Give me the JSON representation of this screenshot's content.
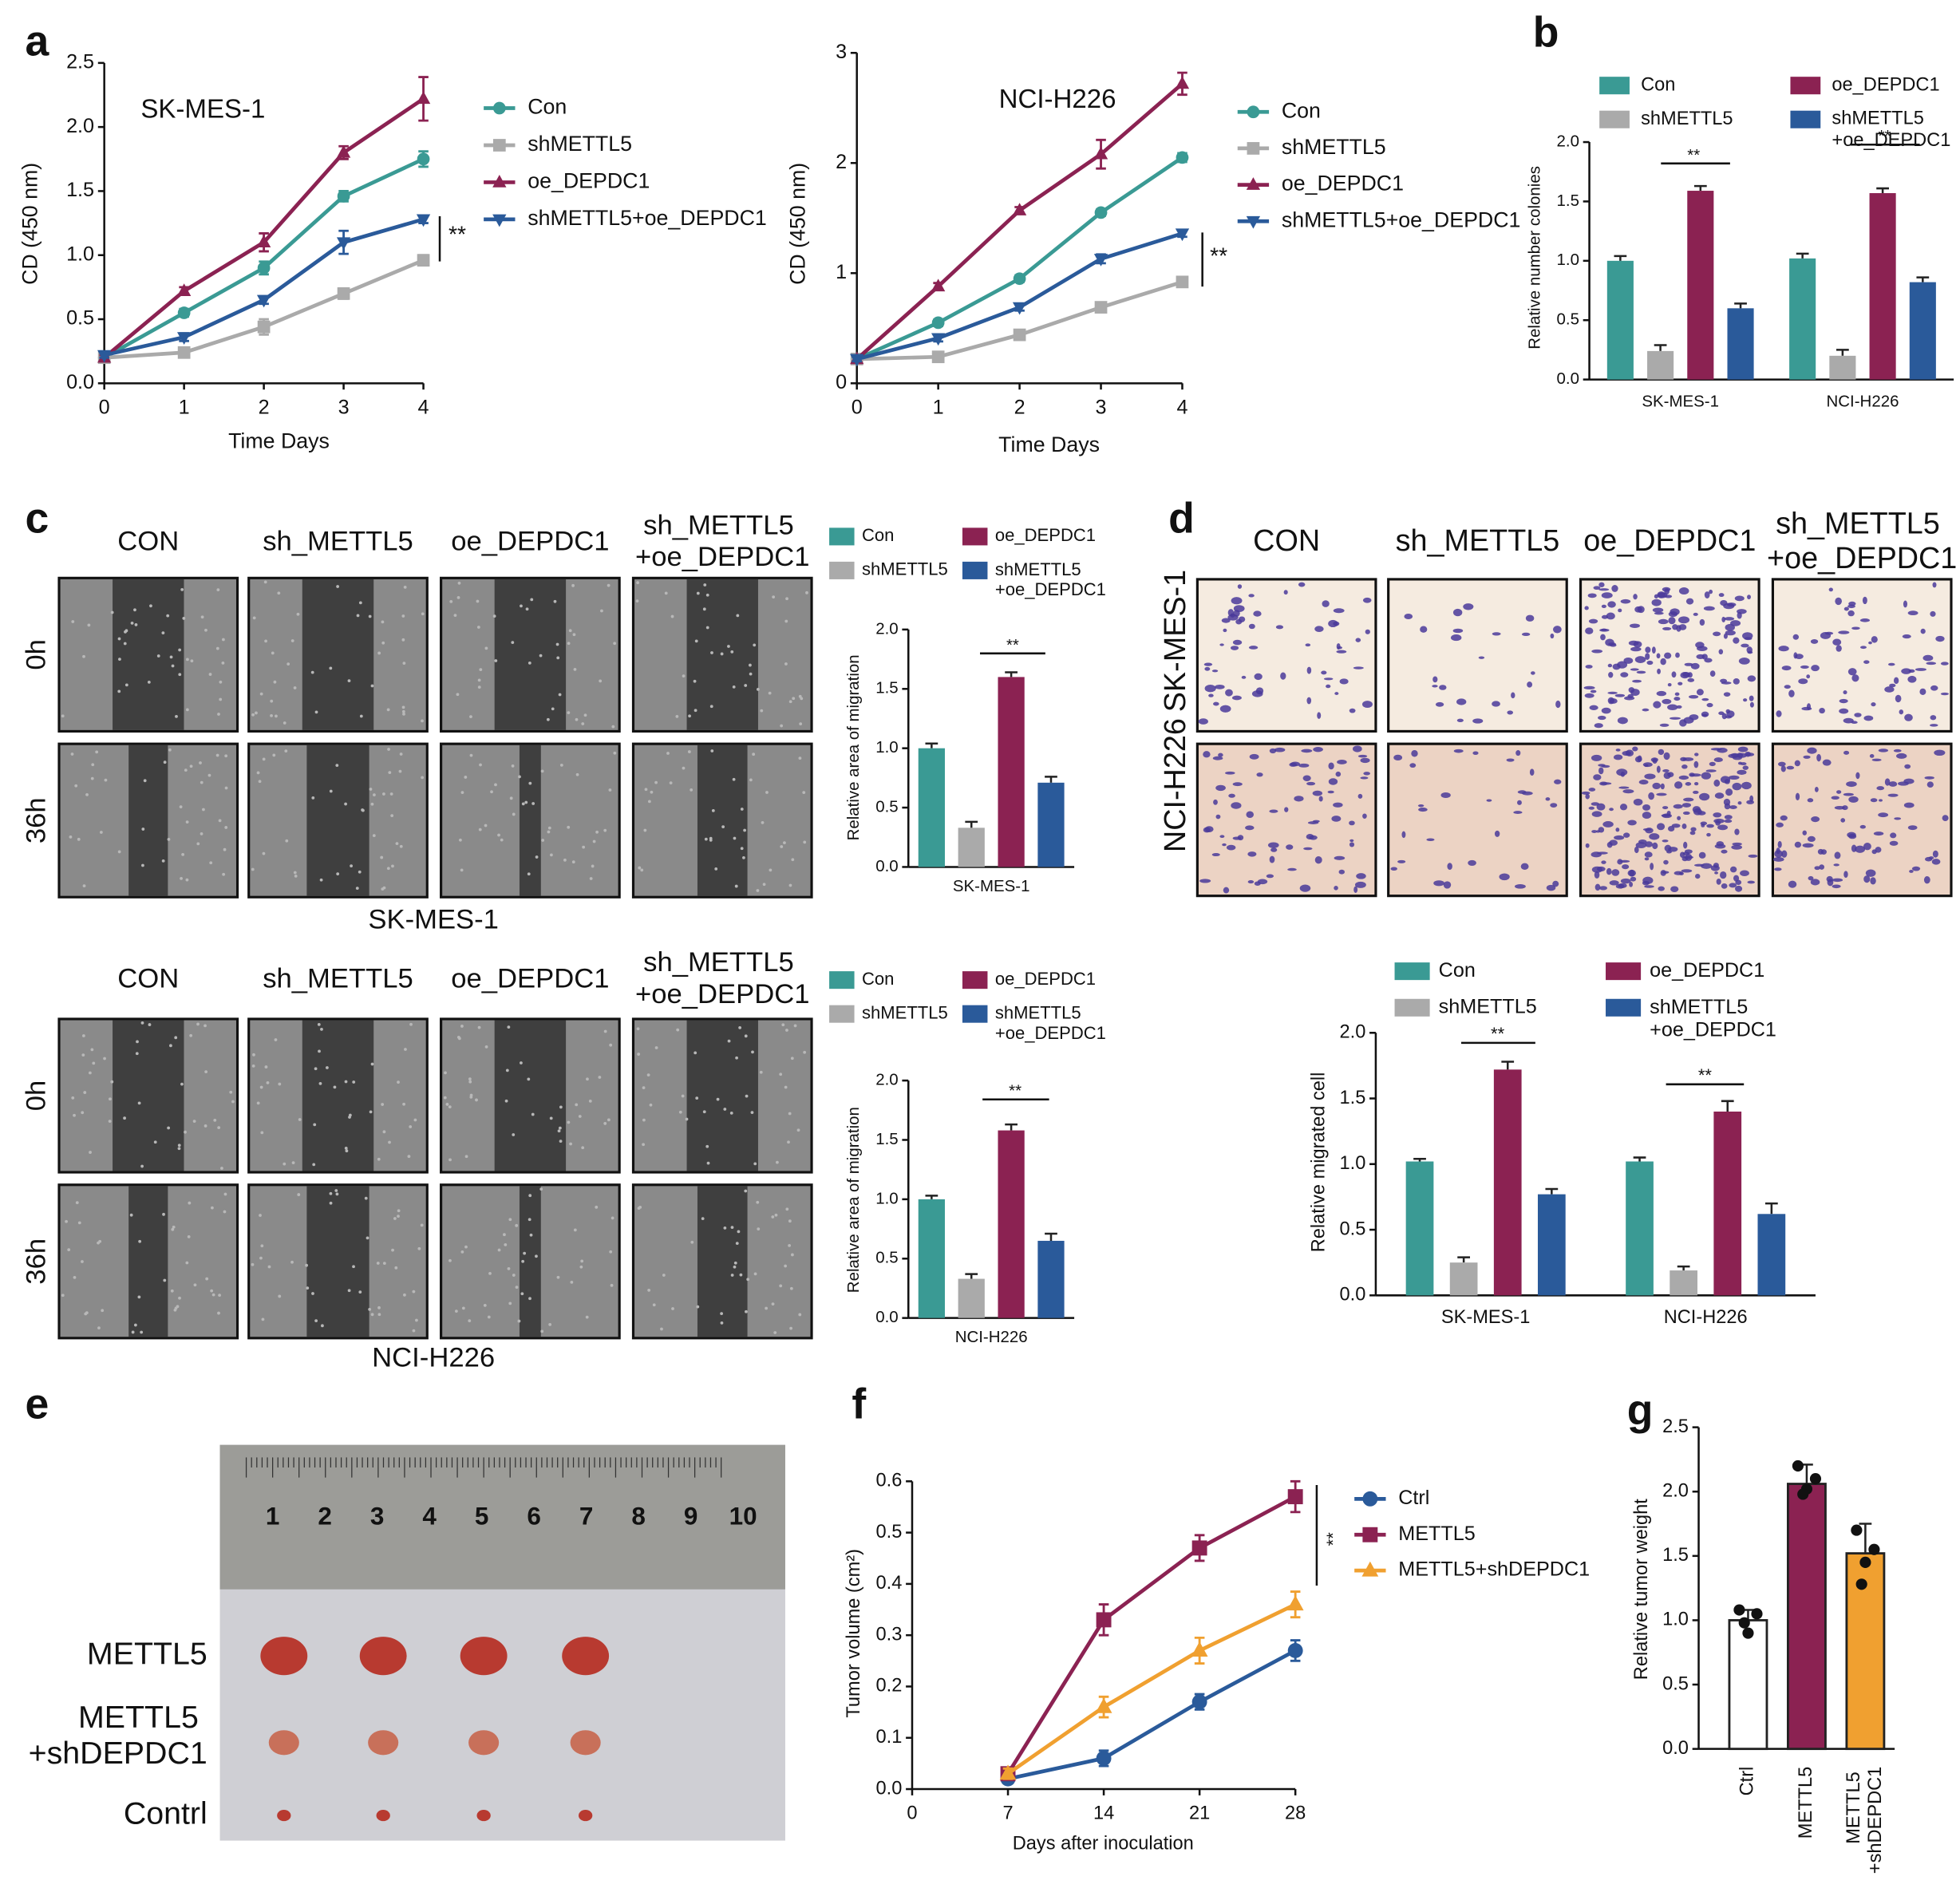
{
  "panel_labels": [
    "a",
    "b",
    "c",
    "d",
    "e",
    "f",
    "g"
  ],
  "wound_healing": [
    {
      "columns": [
        "CON",
        "sh_METTL5",
        "oe_DEPDC1",
        "sh_METTL5\n+oe_DEPDC1"
      ],
      "rows": [
        "0h",
        "36h"
      ],
      "cell_line": "SK-MES-1"
    },
    {
      "columns": [
        "CON",
        "sh_METTL5",
        "oe_DEPDC1",
        "sh_METTL5\n+oe_DEPDC1"
      ],
      "rows": [
        "0h",
        "36h"
      ],
      "cell_line": "NCI-H226"
    }
  ],
  "transwell": {
    "columns": [
      "CON",
      "sh_METTL5",
      "oe_DEPDC1",
      "sh_METTL5\n+oe_DEPDC1"
    ],
    "rows": [
      "SK-MES-1",
      "NCI-H226"
    ]
  },
  "tumor_photo": {
    "ruler_numbers": [
      1,
      2,
      3,
      4,
      5,
      6,
      7,
      8,
      9,
      10
    ],
    "rows": [
      "METTL5",
      "METTL5\n+shDEPDC1",
      "Contrl"
    ]
  },
  "chart_data": [
    {
      "type": "line",
      "title": "SK-MES-1",
      "xlabel": "Time Days",
      "ylabel": "CD (450 nm)",
      "x": [
        0,
        1,
        2,
        3,
        4
      ],
      "xlim": [
        0,
        4
      ],
      "xticks": [
        0,
        1,
        2,
        3,
        4
      ],
      "ylim": [
        0,
        2.5
      ],
      "yticks": [
        {
          "value": 0,
          "label": "0.0"
        },
        0.5,
        {
          "value": 1,
          "label": "1.0"
        },
        1.5,
        {
          "value": 2,
          "label": "2.0"
        },
        2.5
      ],
      "series": [
        {
          "name": "Con",
          "color": "#3a9a94",
          "marker": "circle",
          "values": [
            0.2,
            0.55,
            0.9,
            1.46,
            1.75
          ],
          "errors": [
            0.02,
            0.03,
            0.05,
            0.04,
            0.06
          ]
        },
        {
          "name": "shMETTL5",
          "color": "#aaaaaa",
          "marker": "square",
          "values": [
            0.2,
            0.24,
            0.44,
            0.7,
            0.96
          ],
          "errors": [
            0.02,
            0.03,
            0.06,
            0.04,
            0.04
          ]
        },
        {
          "name": "oe_DEPDC1",
          "color": "#8b2252",
          "marker": "triangle-up",
          "values": [
            0.2,
            0.72,
            1.1,
            1.8,
            2.22
          ],
          "errors": [
            0.02,
            0.03,
            0.07,
            0.05,
            0.17
          ]
        },
        {
          "name": "shMETTL5+oe_DEPDC1",
          "color": "#2a5a9a",
          "marker": "triangle-down",
          "values": [
            0.22,
            0.36,
            0.65,
            1.1,
            1.28
          ],
          "errors": [
            0.02,
            0.03,
            0.03,
            0.09,
            0.03
          ]
        }
      ],
      "annotations": [
        "**"
      ]
    },
    {
      "type": "line",
      "title": "NCI-H226",
      "xlabel": "Time Days",
      "ylabel": "CD (450 nm)",
      "x": [
        0,
        1,
        2,
        3,
        4
      ],
      "xlim": [
        0,
        4
      ],
      "xticks": [
        0,
        1,
        2,
        3,
        4
      ],
      "ylim": [
        0,
        3
      ],
      "yticks": [
        0,
        1,
        2,
        3
      ],
      "series": [
        {
          "name": "Con",
          "color": "#3a9a94",
          "marker": "circle",
          "values": [
            0.22,
            0.55,
            0.95,
            1.55,
            2.05
          ],
          "errors": [
            0.02,
            0.03,
            0.03,
            0.03,
            0.04
          ]
        },
        {
          "name": "shMETTL5",
          "color": "#aaaaaa",
          "marker": "square",
          "values": [
            0.22,
            0.24,
            0.44,
            0.69,
            0.92
          ],
          "errors": [
            0.02,
            0.03,
            0.03,
            0.03,
            0.03
          ]
        },
        {
          "name": "oe_DEPDC1",
          "color": "#8b2252",
          "marker": "triangle-up",
          "values": [
            0.22,
            0.88,
            1.57,
            2.08,
            2.72
          ],
          "errors": [
            0.02,
            0.03,
            0.03,
            0.13,
            0.1
          ]
        },
        {
          "name": "shMETTL5+oe_DEPDC1",
          "color": "#2a5a9a",
          "marker": "triangle-down",
          "values": [
            0.22,
            0.41,
            0.69,
            1.13,
            1.36
          ],
          "errors": [
            0.02,
            0.03,
            0.03,
            0.04,
            0.03
          ]
        }
      ],
      "annotations": [
        "**"
      ]
    },
    {
      "type": "bar",
      "ylabel": "Relative number colonies",
      "categories": [
        "SK-MES-1",
        "NCI-H226"
      ],
      "ylim": [
        0,
        2
      ],
      "yticks": [
        {
          "value": 0,
          "label": "0.0"
        },
        0.5,
        {
          "value": 1,
          "label": "1.0"
        },
        1.5,
        {
          "value": 2,
          "label": "2.0"
        }
      ],
      "series": [
        {
          "name": "Con",
          "color": "#3a9a94",
          "values": [
            1.0,
            1.02
          ],
          "errors": [
            0.04,
            0.04
          ]
        },
        {
          "name": "shMETTL5",
          "color": "#aaaaaa",
          "values": [
            0.24,
            0.2
          ],
          "errors": [
            0.05,
            0.05
          ]
        },
        {
          "name": "oe_DEPDC1",
          "color": "#8b2252",
          "values": [
            1.59,
            1.57
          ],
          "errors": [
            0.04,
            0.04
          ]
        },
        {
          "name": "shMETTL5\n+oe_DEPDC1",
          "color": "#2a5a9a",
          "values": [
            0.6,
            0.82
          ],
          "errors": [
            0.04,
            0.04
          ]
        }
      ],
      "annotations": [
        "**",
        "**"
      ]
    },
    {
      "type": "bar",
      "ylabel": "Relative area of migration",
      "categories": [
        "SK-MES-1"
      ],
      "ylim": [
        0,
        2
      ],
      "yticks": [
        {
          "value": 0,
          "label": "0.0"
        },
        0.5,
        {
          "value": 1,
          "label": "1.0"
        },
        1.5,
        {
          "value": 2,
          "label": "2.0"
        }
      ],
      "series": [
        {
          "name": "Con",
          "color": "#3a9a94",
          "values": [
            1.0
          ],
          "errors": [
            0.04
          ]
        },
        {
          "name": "shMETTL5",
          "color": "#aaaaaa",
          "values": [
            0.33
          ],
          "errors": [
            0.05
          ]
        },
        {
          "name": "oe_DEPDC1",
          "color": "#8b2252",
          "values": [
            1.6
          ],
          "errors": [
            0.04
          ]
        },
        {
          "name": "shMETTL5\n+oe_DEPDC1",
          "color": "#2a5a9a",
          "values": [
            0.71
          ],
          "errors": [
            0.05
          ]
        }
      ],
      "annotations": [
        "**"
      ]
    },
    {
      "type": "bar",
      "ylabel": "Relative area of migration",
      "categories": [
        "NCI-H226"
      ],
      "ylim": [
        0,
        2
      ],
      "yticks": [
        {
          "value": 0,
          "label": "0.0"
        },
        0.5,
        {
          "value": 1,
          "label": "1.0"
        },
        1.5,
        {
          "value": 2,
          "label": "2.0"
        }
      ],
      "series": [
        {
          "name": "Con",
          "color": "#3a9a94",
          "values": [
            1.0
          ],
          "errors": [
            0.03
          ]
        },
        {
          "name": "shMETTL5",
          "color": "#aaaaaa",
          "values": [
            0.33
          ],
          "errors": [
            0.04
          ]
        },
        {
          "name": "oe_DEPDC1",
          "color": "#8b2252",
          "values": [
            1.58
          ],
          "errors": [
            0.05
          ]
        },
        {
          "name": "shMETTL5\n+oe_DEPDC1",
          "color": "#2a5a9a",
          "values": [
            0.65
          ],
          "errors": [
            0.06
          ]
        }
      ],
      "annotations": [
        "**"
      ]
    },
    {
      "type": "bar",
      "ylabel": "Relative migrated cell",
      "categories": [
        "SK-MES-1",
        "NCI-H226"
      ],
      "ylim": [
        0,
        2
      ],
      "yticks": [
        {
          "value": 0,
          "label": "0.0"
        },
        0.5,
        {
          "value": 1,
          "label": "1.0"
        },
        1.5,
        {
          "value": 2,
          "label": "2.0"
        }
      ],
      "series": [
        {
          "name": "Con",
          "color": "#3a9a94",
          "values": [
            1.02,
            1.02
          ],
          "errors": [
            0.02,
            0.03
          ]
        },
        {
          "name": "shMETTL5",
          "color": "#aaaaaa",
          "values": [
            0.25,
            0.19
          ],
          "errors": [
            0.04,
            0.03
          ]
        },
        {
          "name": "oe_DEPDC1",
          "color": "#8b2252",
          "values": [
            1.72,
            1.4
          ],
          "errors": [
            0.06,
            0.08
          ]
        },
        {
          "name": "shMETTL5\n+oe_DEPDC1",
          "color": "#2a5a9a",
          "values": [
            0.77,
            0.62
          ],
          "errors": [
            0.04,
            0.08
          ]
        }
      ],
      "annotations": [
        "**",
        "**"
      ]
    },
    {
      "type": "line",
      "xlabel": "Days after inoculation",
      "ylabel": "Tumor volume (cm²)",
      "x": [
        7,
        14,
        21,
        28
      ],
      "xlim": [
        0,
        28
      ],
      "xticks": [
        0,
        7,
        14,
        21,
        28
      ],
      "ylim": [
        0,
        0.6
      ],
      "yticks": [
        {
          "value": 0,
          "label": "0.0"
        },
        0.1,
        0.2,
        0.3,
        0.4,
        0.5,
        0.6
      ],
      "series": [
        {
          "name": "Ctrl",
          "color": "#2a5a9a",
          "marker": "circle",
          "values": [
            0.02,
            0.06,
            0.17,
            0.27
          ],
          "errors": [
            0.005,
            0.015,
            0.015,
            0.02
          ]
        },
        {
          "name": "METTL5",
          "color": "#8b2252",
          "marker": "square",
          "values": [
            0.03,
            0.33,
            0.47,
            0.57
          ],
          "errors": [
            0.01,
            0.03,
            0.025,
            0.03
          ]
        },
        {
          "name": "METTL5+shDEPDC1",
          "color": "#f0a030",
          "marker": "triangle-up",
          "values": [
            0.03,
            0.16,
            0.27,
            0.36
          ],
          "errors": [
            0.01,
            0.02,
            0.025,
            0.025
          ]
        }
      ],
      "annotations": [
        "**"
      ]
    },
    {
      "type": "bar",
      "ylabel": "Relative tumor weight",
      "categories": [
        "Ctrl",
        "METTL5",
        "METTL5\n+shDEPDC1"
      ],
      "ylim": [
        0,
        2.5
      ],
      "yticks": [
        {
          "value": 0,
          "label": "0.0"
        },
        0.5,
        {
          "value": 1,
          "label": "1.0"
        },
        1.5,
        {
          "value": 2,
          "label": "2.0"
        },
        2.5
      ],
      "values": [
        1.0,
        2.06,
        1.52
      ],
      "errors": [
        0.08,
        0.15,
        0.23
      ],
      "colors": [
        "#ffffff",
        "#8b2252",
        "#f0a030"
      ],
      "points": [
        [
          1.08,
          1.05,
          0.9,
          0.98
        ],
        [
          2.2,
          2.1,
          2.02,
          1.98
        ],
        [
          1.7,
          1.55,
          1.45,
          1.28
        ]
      ]
    }
  ]
}
